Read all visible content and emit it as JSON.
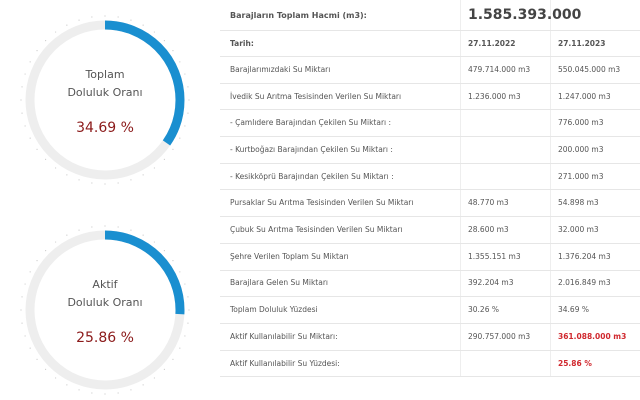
{
  "gauges": [
    {
      "title": "Toplam",
      "subtitle": "Doluluk Oranı",
      "value": 34.69,
      "label": "34.69 %"
    },
    {
      "title": "Aktif",
      "subtitle": "Doluluk Oranı",
      "value": 25.86,
      "label": "25.86 %"
    }
  ],
  "table": {
    "total_label": "Barajların Toplam Hacmi (m3):",
    "total_value": "1.585.393.000",
    "date_label": "Tarih:",
    "dates": [
      "27.11.2022",
      "27.11.2023"
    ],
    "rows": [
      [
        "Barajlarımızdaki Su Miktarı",
        "479.714.000 m3",
        "550.045.000 m3"
      ],
      [
        "İvedik Su Arıtma Tesisinden Verilen Su Miktarı",
        "1.236.000 m3",
        "1.247.000 m3"
      ],
      [
        "- Çamlıdere Barajından Çekilen Su Miktarı :",
        null,
        "776.000 m3"
      ],
      [
        "- Kurtboğazı Barajından Çekilen Su Miktarı :",
        null,
        "200.000 m3"
      ],
      [
        "- Kesikköprü Barajından Çekilen Su Miktarı :",
        null,
        "271.000 m3"
      ],
      [
        "Pursaklar Su Arıtma Tesisinden Verilen Su Miktarı",
        "48.770 m3",
        "54.898 m3"
      ],
      [
        "Çubuk Su Arıtma Tesisinden Verilen Su Miktarı",
        "28.600 m3",
        "32.000 m3"
      ],
      [
        "Şehre Verilen Toplam Su Miktarı",
        "1.355.151 m3",
        "1.376.204 m3"
      ],
      [
        "Barajlara Gelen Su Miktarı",
        "392.204 m3",
        "2.016.849 m3"
      ],
      [
        "Toplam Doluluk Yüzdesi",
        "30.26 %",
        "34.69 %"
      ],
      [
        "Aktif Kullanılabilir Su Miktarı:",
        "290.757.000 m3",
        "361.088.000 m3"
      ],
      [
        "Aktif Kullanılabilir Su Yüzdesi:",
        null,
        "25.86 %"
      ]
    ]
  }
}
